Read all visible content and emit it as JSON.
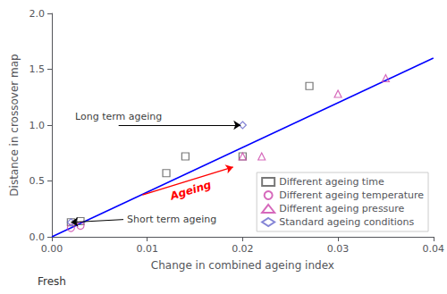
{
  "chart_data": {
    "type": "scatter",
    "xlabel": "Change in combined ageing index",
    "ylabel": "Distance in crossover map",
    "xlim": [
      0,
      0.04
    ],
    "ylim": [
      0,
      2.0
    ],
    "xticks": [
      {
        "value": 0,
        "label": "0.00"
      },
      0.01,
      0.02,
      0.03,
      0.04
    ],
    "yticks": [
      {
        "value": 0,
        "label": "0.0"
      },
      0.5,
      {
        "value": 1,
        "label": "1.0"
      },
      1.5,
      {
        "value": 2,
        "label": "2.0"
      }
    ],
    "grid": false,
    "legend": "lower right",
    "series": [
      {
        "type": "line",
        "color": "blue",
        "x": [
          0.0,
          0.04
        ],
        "values": [
          0.0,
          1.6
        ]
      },
      {
        "type": "scatter",
        "name": "Different ageing time",
        "color": "#555555",
        "marker": "square",
        "x": [
          0.002,
          0.003,
          0.012,
          0.014,
          0.02,
          0.027
        ],
        "values": [
          0.13,
          0.14,
          0.57,
          0.72,
          0.72,
          1.35
        ]
      },
      {
        "type": "scatter",
        "name": "Different ageing temperature",
        "color": "#cc44aa",
        "marker": "circle",
        "x": [
          0.002,
          0.003
        ],
        "values": [
          0.08,
          0.1
        ]
      },
      {
        "type": "scatter",
        "name": "Different ageing pressure",
        "color": "#cc44aa",
        "marker": "triangle",
        "x": [
          0.02,
          0.022,
          0.03,
          0.035
        ],
        "values": [
          0.72,
          0.72,
          1.28,
          1.42
        ]
      },
      {
        "type": "scatter",
        "name": "Standard ageing conditions",
        "color": "#6666cc",
        "marker": "diamond",
        "x": [
          0.002,
          0.02
        ],
        "values": [
          0.13,
          1.0
        ]
      }
    ],
    "annotations": [
      {
        "text": "Ageing",
        "color": "red",
        "x": 0.019,
        "y": 0.625,
        "from": [
          0.0095,
          0.375
        ]
      },
      {
        "text": "Long term ageing",
        "x": 0.0198,
        "y": 1.0,
        "from": [
          0.007,
          1.0
        ]
      },
      {
        "text": "Short term ageing",
        "x": 0.002,
        "y": 0.13,
        "from": [
          0.0075,
          0.155
        ]
      },
      {
        "text": "Fresh",
        "x": 0
      }
    ]
  }
}
